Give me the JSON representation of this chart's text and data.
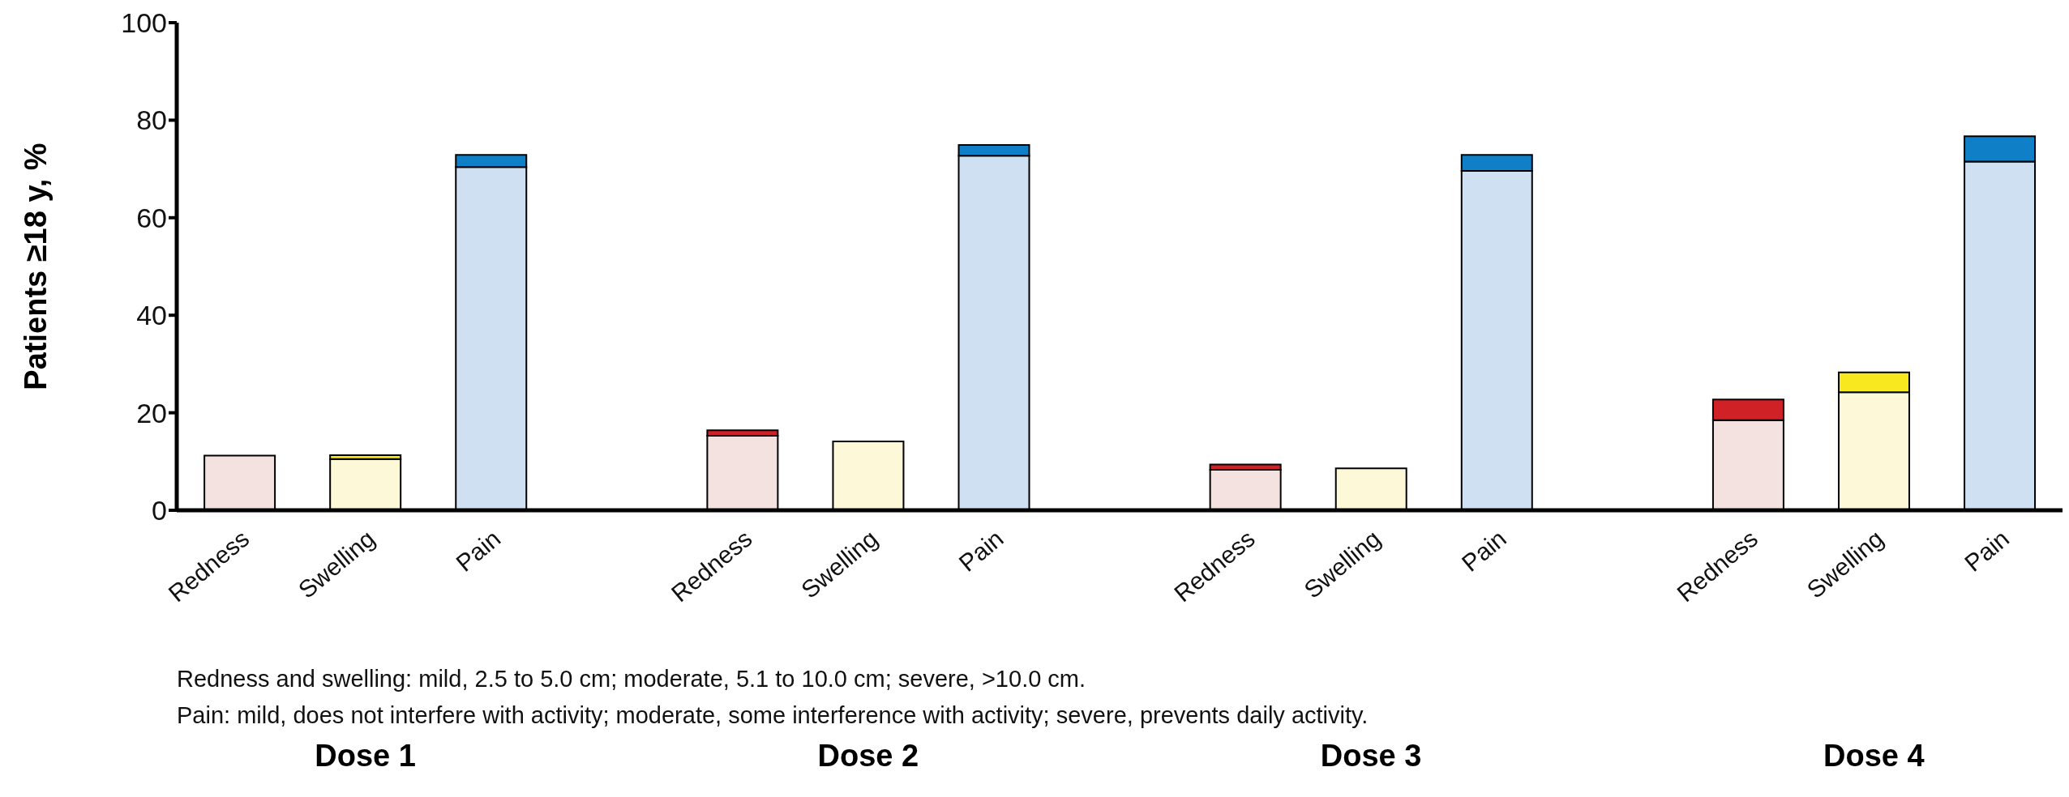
{
  "chart_data": {
    "type": "bar",
    "stacked": true,
    "ylabel": "Patients ≥18 y, %",
    "categories": [
      "Redness",
      "Swelling",
      "Pain",
      null,
      "Redness",
      "Swelling",
      "Pain",
      null,
      "Redness",
      "Swelling",
      "Pain",
      null,
      "Redness",
      "Swelling",
      "Pain"
    ],
    "series": [
      {
        "values": [
          11.2,
          10.5,
          70.4,
          null,
          15.3,
          14.1,
          72.7,
          null,
          8.3,
          8.6,
          69.6,
          null,
          18.5,
          24.2,
          71.5
        ],
        "colors": [
          "#f4e2e1",
          "#fdf9d8",
          "#cfe0f2",
          null,
          "#f4e2e1",
          "#fdf9d8",
          "#cfe0f2",
          null,
          "#f4e2e1",
          "#fdf9d8",
          "#cfe0f2",
          null,
          "#f4e2e1",
          "#fdf9d8",
          "#cfe0f2"
        ]
      },
      {
        "values": [
          null,
          0.8,
          2.5,
          null,
          1.1,
          null,
          2.2,
          null,
          1.1,
          null,
          3.3,
          null,
          4.2,
          4.1,
          5.2
        ],
        "colors": [
          "#d02127",
          "#f7e81f",
          "#0f80c8",
          null,
          "#d02127",
          "#f7e81f",
          "#0f80c8",
          null,
          "#d02127",
          "#f7e81f",
          "#0f80c8",
          null,
          "#d02127",
          "#f7e81f",
          "#0f80c8"
        ]
      }
    ],
    "ylim": [
      0,
      100
    ],
    "yticks": [
      0,
      20,
      40,
      60,
      80,
      100
    ],
    "grid": false,
    "legend": false,
    "annotations": [
      "Redness and swelling: mild, 2.5 to 5.0 cm; moderate, 5.1 to 10.0 cm; severe, >10.0 cm.",
      "Pain: mild, does not interfere with activity; moderate, some interference with activity; severe, prevents daily activity.",
      "Dose 1",
      "Dose 2",
      "Dose 3",
      "Dose 4"
    ]
  }
}
